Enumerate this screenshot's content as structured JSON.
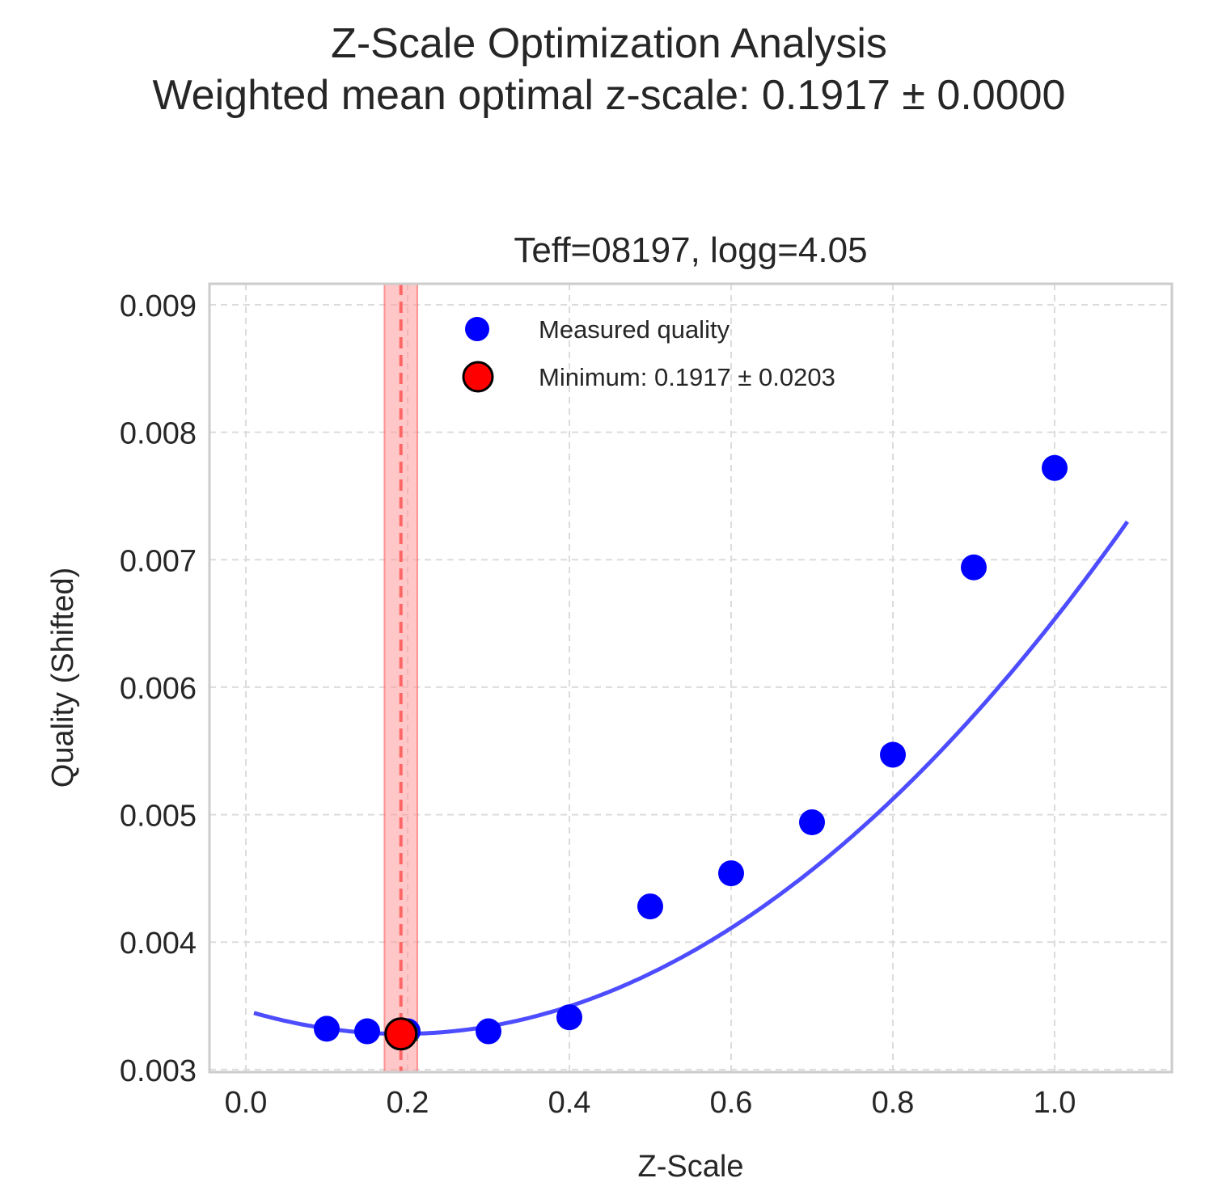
{
  "figure": {
    "title_line1": "Z-Scale Optimization Analysis",
    "title_line2": "Weighted mean optimal z-scale: 0.1917 ± 0.0000"
  },
  "colors": {
    "measured": "#0000ff",
    "fit_curve": "#4d4dff",
    "minimum_fill": "#ff0000",
    "minimum_band": "#ff9999",
    "minimum_line": "#ff6666",
    "grid": "#dcdcdc",
    "axes_frame": "#cccccc"
  },
  "chart_data": {
    "type": "scatter",
    "title": "Teff=08197, logg=4.05",
    "xlabel": "Z-Scale",
    "ylabel": "Quality (Shifted)",
    "xlim": [
      -0.045,
      1.145
    ],
    "ylim": [
      0.00298,
      0.009165
    ],
    "xticks": [
      0.0,
      0.2,
      0.4,
      0.6,
      0.8,
      1.0
    ],
    "xtick_labels": [
      "0.0",
      "0.2",
      "0.4",
      "0.6",
      "0.8",
      "1.0"
    ],
    "yticks": [
      0.003,
      0.004,
      0.005,
      0.006,
      0.007,
      0.008,
      0.009
    ],
    "ytick_labels": [
      "0.003",
      "0.004",
      "0.005",
      "0.006",
      "0.007",
      "0.008",
      "0.009"
    ],
    "grid": true,
    "legend_position": "top-center",
    "series": [
      {
        "name": "Measured quality",
        "kind": "scatter",
        "x": [
          0.1,
          0.15,
          0.2,
          0.3,
          0.4,
          0.5,
          0.6,
          0.7,
          0.8,
          0.9,
          1.0
        ],
        "y": [
          0.00332,
          0.0033,
          0.0033,
          0.0033,
          0.00341,
          0.00428,
          0.00454,
          0.00494,
          0.00547,
          0.00694,
          0.00772
        ]
      },
      {
        "kind": "fit_curve",
        "quadratic": {
          "a": 0.00498,
          "vertex_x": 0.1917,
          "vertex_y": 0.00328
        },
        "x_range": [
          0.01,
          1.09
        ]
      },
      {
        "name": "Minimum: 0.1917 ± 0.0203",
        "kind": "minimum",
        "x": 0.1917,
        "y": 0.00328,
        "uncertainty": 0.0203
      }
    ]
  }
}
